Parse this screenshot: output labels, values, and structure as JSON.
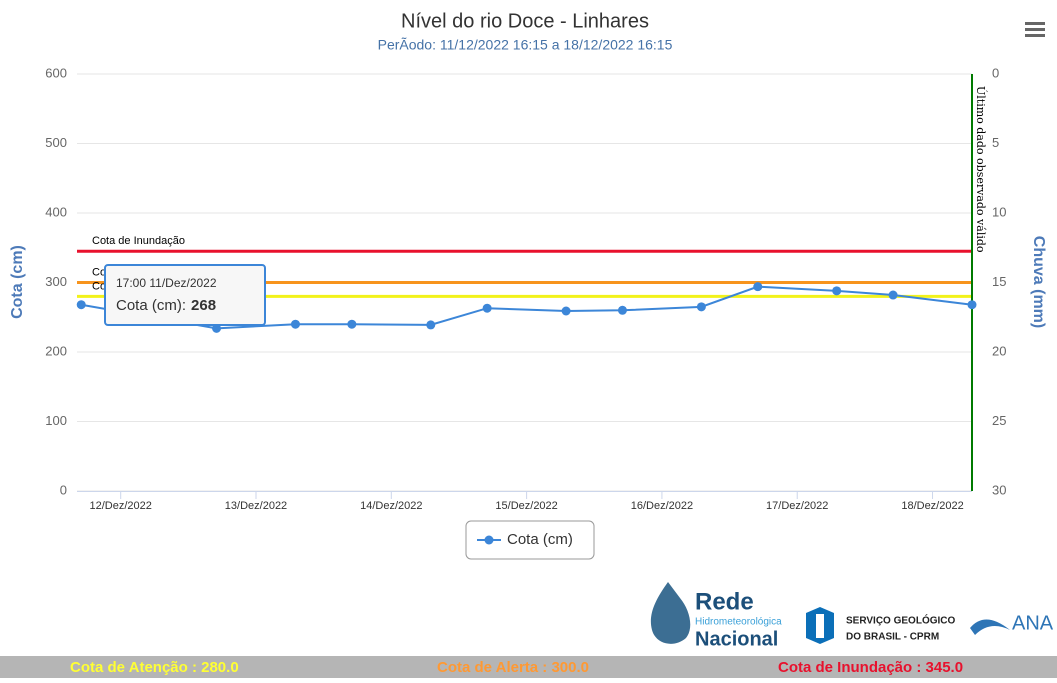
{
  "chart_data": {
    "type": "line",
    "title": "Nível do rio Doce - Linhares",
    "subtitle": "PerÃodo: 11/12/2022 16:15 a 18/12/2022 16:15",
    "y_label": "Cota (cm)",
    "y2_label": "Chuva (mm)",
    "x": [
      "2022-12-11 17:00",
      "2022-12-12 17:00",
      "2022-12-13 07:00",
      "2022-12-13 17:00",
      "2022-12-14 07:00",
      "2022-12-14 17:00",
      "2022-12-15 07:00",
      "2022-12-15 17:00",
      "2022-12-16 07:00",
      "2022-12-16 17:00",
      "2022-12-17 07:00",
      "2022-12-17 17:00",
      "2022-12-18 07:00"
    ],
    "series": [
      {
        "name": "Cota (cm)",
        "color": "#3c86d8",
        "values": [
          268,
          234,
          240,
          240,
          239,
          263,
          259,
          260,
          265,
          294,
          288,
          282,
          268
        ]
      }
    ],
    "xlim": [
      "2022-12-11 16:15",
      "2022-12-18 07:00"
    ],
    "xticks": [
      {
        "value": "2022-12-12 00:00",
        "label": "12/Dez/2022"
      },
      {
        "value": "2022-12-13 00:00",
        "label": "13/Dez/2022"
      },
      {
        "value": "2022-12-14 00:00",
        "label": "14/Dez/2022"
      },
      {
        "value": "2022-12-15 00:00",
        "label": "15/Dez/2022"
      },
      {
        "value": "2022-12-16 00:00",
        "label": "16/Dez/2022"
      },
      {
        "value": "2022-12-17 00:00",
        "label": "17/Dez/2022"
      },
      {
        "value": "2022-12-18 00:00",
        "label": "18/Dez/2022"
      }
    ],
    "ylim": [
      0,
      600
    ],
    "yticks": [
      0,
      100,
      200,
      300,
      400,
      500,
      600
    ],
    "y2lim": [
      0,
      30
    ],
    "y2ticks": [
      0,
      5,
      10,
      15,
      20,
      25,
      30
    ],
    "y2_reversed": true,
    "grid": true,
    "plot_lines": [
      {
        "label": "Cota de Inundação",
        "value": 345,
        "color": "#e8112d"
      },
      {
        "label": "Cota de Alerta",
        "value": 300,
        "color": "#f7941d"
      },
      {
        "label": "Cota de Atenção",
        "value": 280,
        "color": "#f2f21a"
      }
    ],
    "last_valid": {
      "label": "Último dado observado válido",
      "x": "2022-12-18 07:00",
      "color": "#007a00"
    },
    "tooltip": {
      "header": "17:00 11/Dez/2022",
      "label": "Cota (cm):"
    },
    "legend_position": "bottom"
  },
  "footer": [
    {
      "text": "Cota de Atenção : 280.0",
      "color": "#ffff33"
    },
    {
      "text": "Cota de Alerta : 300.0",
      "color": "#ff9933"
    },
    {
      "text": "Cota de Inundação : 345.0",
      "color": "#e8112d"
    }
  ],
  "logos": {
    "rede": "Rede",
    "hidro": "Hidrometeorológica",
    "nacional": "Nacional",
    "sgb1": "SERVIÇO GEOLÓGICO",
    "sgb2": "DO BRASIL - CPRM",
    "ana": "ANA"
  }
}
